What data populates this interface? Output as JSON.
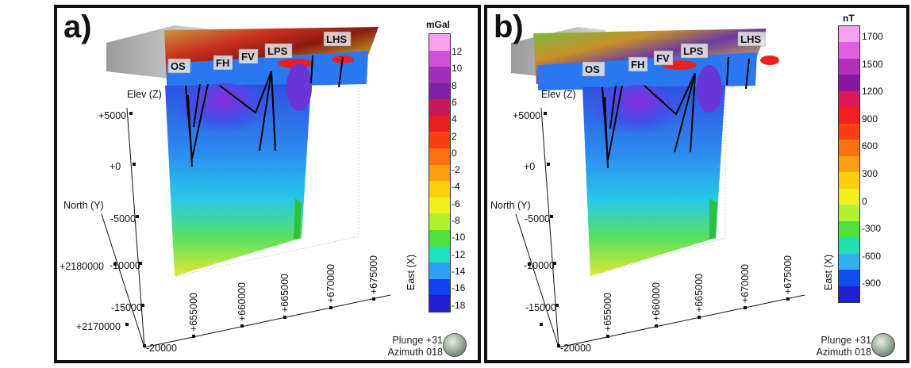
{
  "panels": [
    {
      "letter": "a)",
      "legend": {
        "unit": "mGal",
        "ticks": [
          "12",
          "10",
          "8",
          "6",
          "4",
          "2",
          "0",
          "-2",
          "-4",
          "-6",
          "-8",
          "-10",
          "-12",
          "-14",
          "-16",
          "-18"
        ],
        "colors": [
          "#f8a0f0",
          "#d050d8",
          "#a030b8",
          "#8020a8",
          "#c81858",
          "#e82020",
          "#f84010",
          "#f87010",
          "#f8a010",
          "#f8d010",
          "#f0f020",
          "#b0f030",
          "#50e040",
          "#20e0c0",
          "#30a0f0",
          "#1040f0",
          "#2020d0"
        ]
      },
      "features": [
        "OS",
        "FH",
        "FV",
        "LPS",
        "LHS"
      ],
      "axes": {
        "elev_title": "Elev (Z)",
        "elev_ticks": [
          "+5000",
          "+0",
          "-5000",
          "-10000",
          "-15000",
          "-20000"
        ],
        "north_title": "North (Y)",
        "north_ticks": [
          "+2180000",
          "+2170000"
        ],
        "east_title": "East (X)",
        "east_ticks": [
          "+655000",
          "+660000",
          "+665000",
          "+670000",
          "+675000"
        ]
      },
      "view": {
        "plunge": "Plunge +31",
        "azimuth": "Azimuth 018"
      }
    },
    {
      "letter": "b)",
      "legend": {
        "unit": "nT",
        "ticks": [
          "1700",
          "1500",
          "1200",
          "900",
          "600",
          "300",
          "0",
          "-300",
          "-600",
          "-900"
        ],
        "colors": [
          "#f8a0f0",
          "#e060e0",
          "#b030b8",
          "#8818a0",
          "#e0185a",
          "#f02020",
          "#f84010",
          "#f87010",
          "#f8a010",
          "#f8d010",
          "#f0f020",
          "#b0f030",
          "#50e040",
          "#20e0b0",
          "#30b0f0",
          "#1050f0",
          "#2020d0"
        ]
      },
      "features": [
        "OS",
        "FH",
        "FV",
        "LPS",
        "LHS"
      ],
      "axes": {
        "elev_title": "Elev (Z)",
        "elev_ticks": [
          "+5000",
          "+0",
          "-5000",
          "-10000",
          "-15000",
          "-20000"
        ],
        "north_title": "North (Y)",
        "north_ticks": [],
        "east_title": "East (X)",
        "east_ticks": [
          "+655000",
          "+660000",
          "+665000",
          "+670000",
          "+675000"
        ]
      },
      "view": {
        "plunge": "Plunge +31",
        "azimuth": "Azimuth 018"
      }
    }
  ]
}
